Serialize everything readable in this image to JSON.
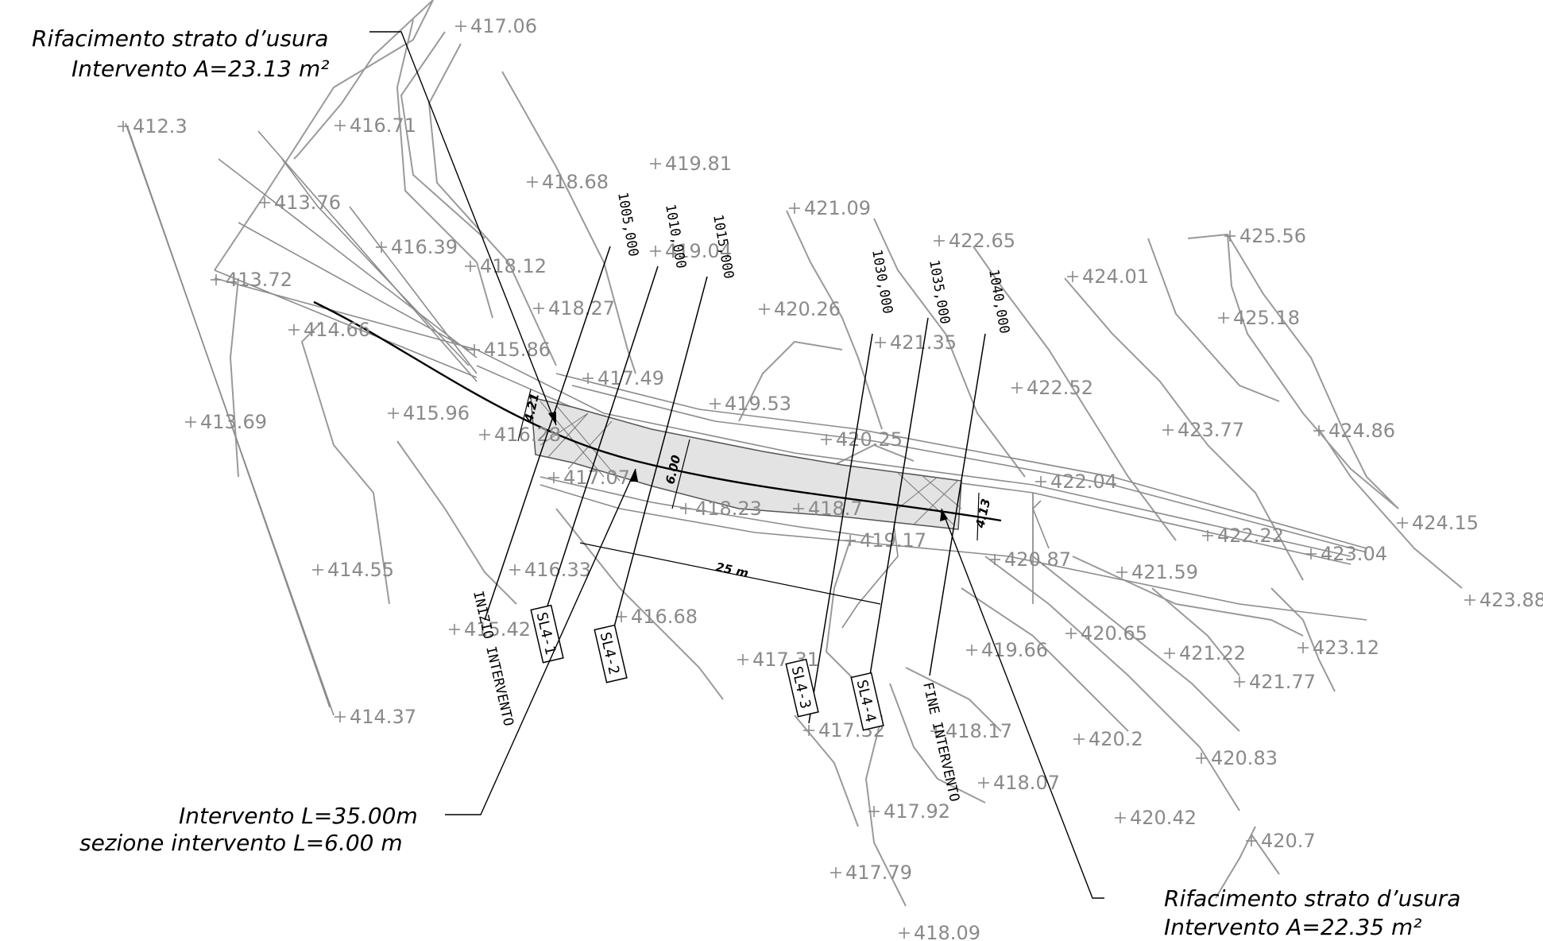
{
  "notes": {
    "top_left_line1": "Rifacimento strato d’usura",
    "top_left_line2": "Intervento A=23.13 m²",
    "bottom_left_line1": "Intervento L=35.00m",
    "bottom_left_line2": "sezione intervento L=6.00 m",
    "bottom_right_line1": "Rifacimento strato d’usura",
    "bottom_right_line2": "Intervento A=22.35 m²"
  },
  "spot_elevations": [
    "417.06",
    "412.3",
    "416.71",
    "418.68",
    "419.81",
    "413.76",
    "421.09",
    "416.39",
    "419.04",
    "422.65",
    "425.56",
    "418.12",
    "413.72",
    "424.01",
    "418.27",
    "420.26",
    "425.18",
    "414.66",
    "421.35",
    "415.86",
    "422.52",
    "417.49",
    "419.53",
    "413.69",
    "415.96",
    "416.28",
    "420.25",
    "423.77",
    "424.86",
    "417.07",
    "422.04",
    "418.23",
    "418.7",
    "424.15",
    "419.17",
    "422.22",
    "423.04",
    "414.55",
    "416.33",
    "420.87",
    "421.59",
    "423.88",
    "416.68",
    "415.42",
    "420.65",
    "423.12",
    "419.66",
    "421.22",
    "417.31",
    "421.77",
    "414.37",
    "417.32",
    "418.17",
    "420.2",
    "420.83",
    "418.07",
    "417.92",
    "420.42",
    "420.7",
    "417.79",
    "418.09"
  ],
  "chainages": [
    "1005,000",
    "1010,000",
    "1015,000",
    "1030,000",
    "1035,000",
    "1040,000"
  ],
  "section_tags": [
    "SL4-1",
    "SL4-2",
    "SL4-3",
    "SL4-4"
  ],
  "start_label": "INIZIO INTERVENTO",
  "end_label": "FINE INTERVENTO",
  "dimensions": {
    "length": "25 m",
    "width_center": "6.00",
    "width_left": "4.21",
    "width_right": "4.13"
  },
  "colors": {
    "ink": "#000000",
    "grey": "#8a8a8a",
    "fill": "#e3e3e3"
  }
}
